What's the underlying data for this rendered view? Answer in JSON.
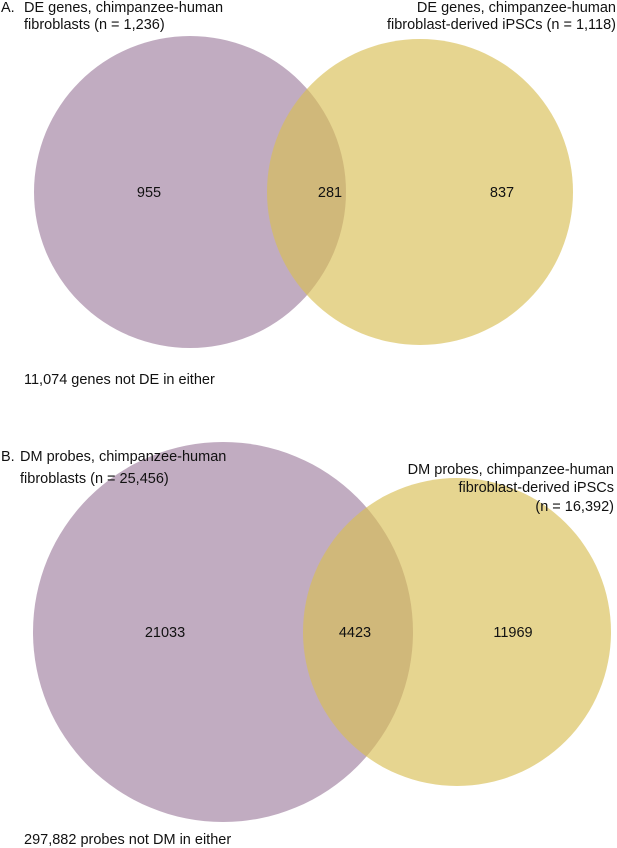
{
  "colors": {
    "set_a": "#a07f9f",
    "set_b": "#d9bf55",
    "text": "#111111"
  },
  "panels": [
    {
      "panel_label": "A.",
      "left_set": {
        "label_lines": [
          "DE genes, chimpanzee-human",
          "fibroblasts (n = 1,236)"
        ],
        "only_count": "955"
      },
      "right_set": {
        "label_lines": [
          "DE genes, chimpanzee-human",
          "fibroblast-derived iPSCs (n = 1,118)"
        ],
        "only_count": "837"
      },
      "overlap_count": "281",
      "outside_label": "11,074 genes not DE in either"
    },
    {
      "panel_label": "B.",
      "left_set": {
        "label_lines": [
          "DM probes, chimpanzee-human",
          "fibroblasts (n = 25,456)"
        ],
        "only_count": "21033"
      },
      "right_set": {
        "label_lines": [
          "DM probes, chimpanzee-human",
          "fibroblast-derived iPSCs",
          "(n = 16,392)"
        ],
        "only_count": "11969"
      },
      "overlap_count": "4423",
      "outside_label": "297,882 probes not DM in either"
    }
  ]
}
